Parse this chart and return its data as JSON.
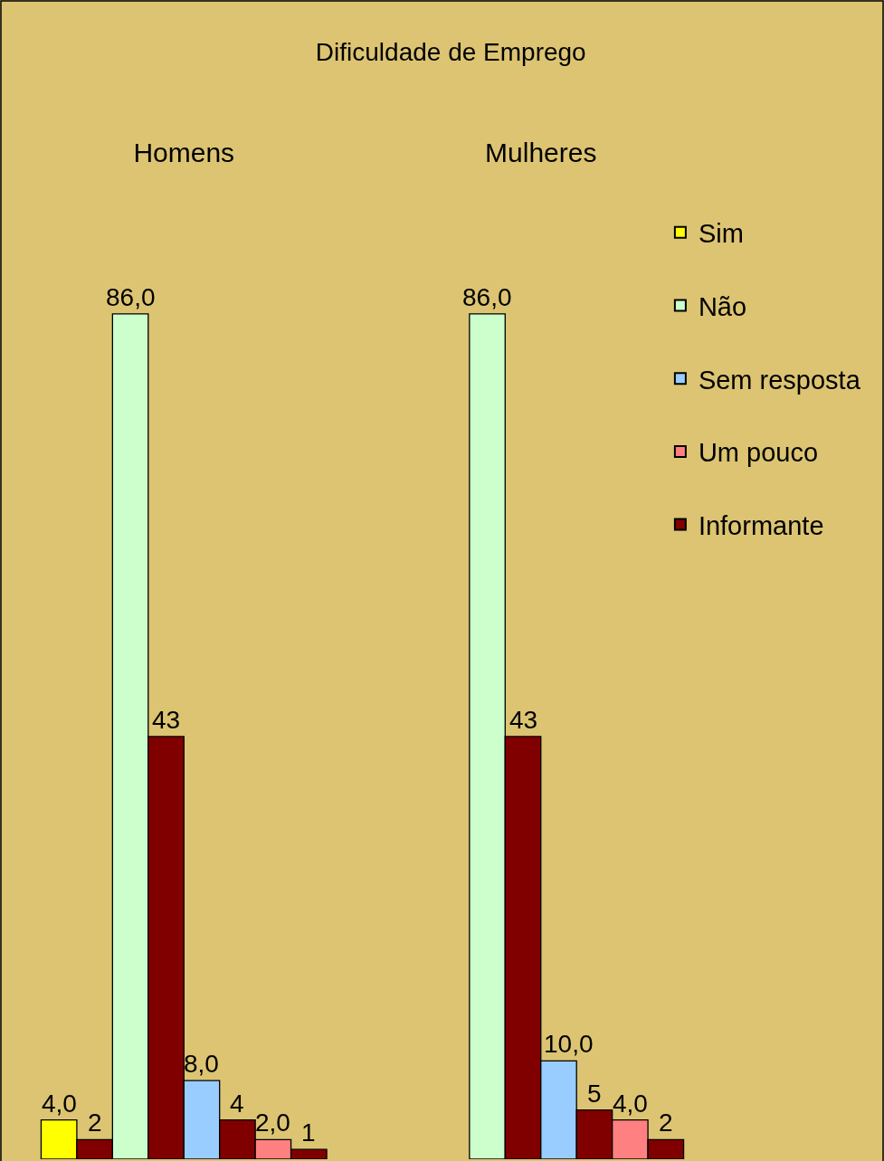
{
  "chart_data": {
    "type": "bar",
    "title": "Dificuldade de Emprego",
    "categories": [
      "Homens",
      "Mulheres"
    ],
    "series": [
      {
        "name": "Sim",
        "color": "#ffff00",
        "values": [
          4.0,
          null
        ],
        "value_labels": [
          "4,0",
          null
        ]
      },
      {
        "color": "#800000",
        "values": [
          2,
          null
        ],
        "value_labels": [
          "2",
          null
        ]
      },
      {
        "name": "Não",
        "color": "#ccffcc",
        "values": [
          86.0,
          86.0
        ],
        "value_labels": [
          "86,0",
          "86,0"
        ]
      },
      {
        "color": "#800000",
        "values": [
          43,
          43
        ],
        "value_labels": [
          "43",
          "43"
        ]
      },
      {
        "name": "Sem resposta",
        "color": "#99ccff",
        "values": [
          8.0,
          10.0
        ],
        "value_labels": [
          "8,0",
          "10,0"
        ]
      },
      {
        "color": "#800000",
        "values": [
          4,
          5
        ],
        "value_labels": [
          "4",
          "5"
        ]
      },
      {
        "name": "Um pouco",
        "color": "#ff8080",
        "values": [
          2.0,
          4.0
        ],
        "value_labels": [
          "2,0",
          "4,0"
        ]
      },
      {
        "name": "Informante",
        "color": "#800000",
        "values": [
          1,
          2
        ],
        "value_labels": [
          "1",
          "2"
        ]
      }
    ],
    "legend": "top right",
    "grid": false,
    "tick_labels": "x"
  }
}
